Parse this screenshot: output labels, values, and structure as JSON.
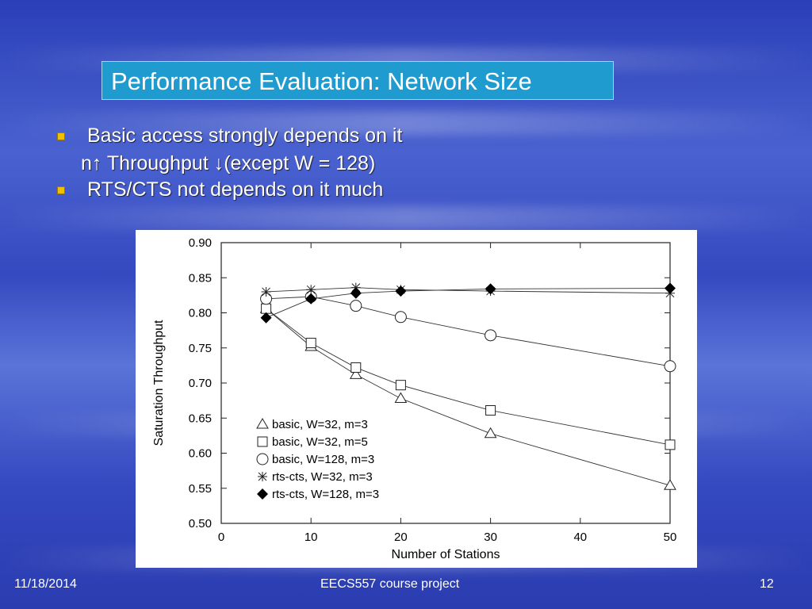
{
  "slide": {
    "title": "Performance Evaluation: Network Size",
    "bullets": [
      "Basic access strongly depends on it",
      "RTS/CTS not depends on it much"
    ],
    "sub_line": {
      "pre": "n",
      "mid": " Throughput ",
      "post": "(except W = 128)"
    },
    "footer": {
      "date": "11/18/2014",
      "center": "EECS557 course project",
      "page": "12"
    }
  },
  "chart_data": {
    "type": "line",
    "title": "",
    "xlabel": "Number of Stations",
    "ylabel": "Saturation Throughput",
    "xlim": [
      0,
      50
    ],
    "ylim": [
      0.5,
      0.9
    ],
    "xticks": [
      "0",
      "10",
      "20",
      "30",
      "40",
      "50"
    ],
    "yticks": [
      "0.50",
      "0.55",
      "0.60",
      "0.65",
      "0.70",
      "0.75",
      "0.80",
      "0.85",
      "0.90"
    ],
    "x": [
      5,
      10,
      15,
      20,
      30,
      50
    ],
    "legend_position": "bottom-left",
    "series": [
      {
        "name": "basic, W=32, m=3",
        "marker": "triangle",
        "values": [
          0.806,
          0.752,
          0.712,
          0.678,
          0.628,
          0.554
        ]
      },
      {
        "name": "basic, W=32, m=5",
        "marker": "square",
        "values": [
          0.806,
          0.757,
          0.722,
          0.697,
          0.661,
          0.612
        ]
      },
      {
        "name": "basic, W=128, m=3",
        "marker": "circle",
        "values": [
          0.82,
          0.823,
          0.81,
          0.794,
          0.768,
          0.724
        ]
      },
      {
        "name": "rts-cts, W=32, m=3",
        "marker": "star",
        "values": [
          0.83,
          0.833,
          0.836,
          0.833,
          0.831,
          0.828
        ]
      },
      {
        "name": "rts-cts, W=128, m=3",
        "marker": "diamond",
        "values": [
          0.793,
          0.82,
          0.828,
          0.831,
          0.834,
          0.835
        ]
      }
    ]
  }
}
